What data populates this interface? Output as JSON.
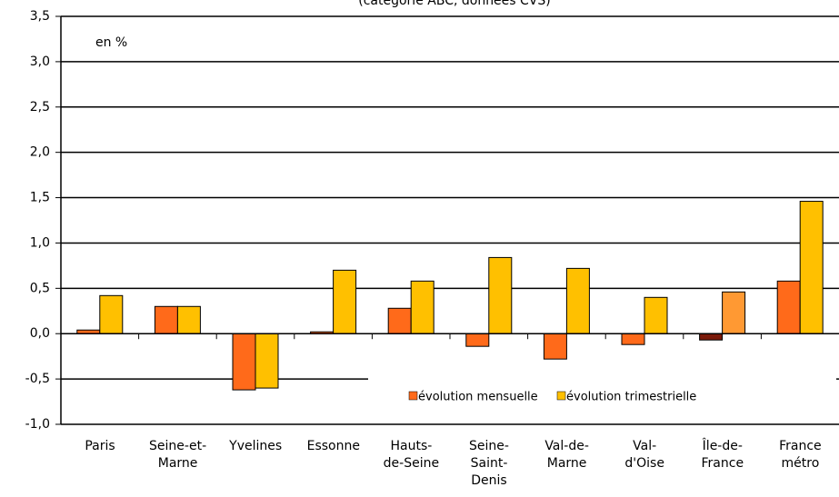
{
  "chart_data": {
    "type": "bar",
    "subtitle": "(catégorie ABC, données CVS)",
    "annotation": "en %",
    "categories": [
      "Paris",
      "Seine-et-\nMarne",
      "Yvelines",
      "Essonne",
      "Hauts-\nde-Seine",
      "Seine-\nSaint-\nDenis",
      "Val-de-\nMarne",
      "Val-\nd'Oise",
      "Île-de-\nFrance",
      "France\nmétro"
    ],
    "series": [
      {
        "name": "évolution mensuelle",
        "color": "#ff6a1a",
        "colors": [
          "#ff6a1a",
          "#ff6a1a",
          "#ff6a1a",
          "#ff6a1a",
          "#ff6a1a",
          "#ff6a1a",
          "#ff6a1a",
          "#ff6a1a",
          "#7b1a0a",
          "#ff6a1a"
        ],
        "values": [
          0.04,
          0.3,
          -0.62,
          0.02,
          0.28,
          -0.14,
          -0.28,
          -0.12,
          -0.07,
          0.58
        ]
      },
      {
        "name": "évolution trimestrielle",
        "color": "#ffc000",
        "colors": [
          "#ffc000",
          "#ffc000",
          "#ffc000",
          "#ffc000",
          "#ffc000",
          "#ffc000",
          "#ffc000",
          "#ffc000",
          "#ff9933",
          "#ffc000"
        ],
        "values": [
          0.42,
          0.3,
          -0.6,
          0.7,
          0.58,
          0.84,
          0.72,
          0.4,
          0.46,
          1.46
        ]
      }
    ],
    "ylim": [
      -1.0,
      3.5
    ],
    "yticks": [
      {
        "value": -1.0,
        "label": "-1,0"
      },
      {
        "value": -0.5,
        "label": "-0,5"
      },
      {
        "value": 0.0,
        "label": "0,0"
      },
      {
        "value": 0.5,
        "label": "0,5"
      },
      {
        "value": 1.0,
        "label": "1,0"
      },
      {
        "value": 1.5,
        "label": "1,5"
      },
      {
        "value": 2.0,
        "label": "2,0"
      },
      {
        "value": 2.5,
        "label": "2,5"
      },
      {
        "value": 3.0,
        "label": "3,0"
      },
      {
        "value": 3.5,
        "label": "3,5"
      }
    ],
    "grid": true
  }
}
